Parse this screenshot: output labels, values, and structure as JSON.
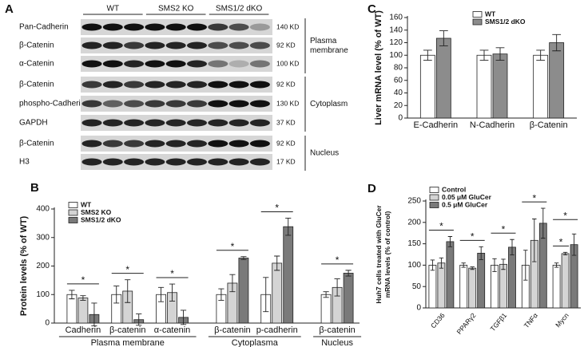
{
  "blot": {
    "panel_label": "A",
    "lane_groups": [
      "WT",
      "SMS2 KO",
      "SMS1/2 dKO"
    ],
    "rows": [
      {
        "label": "Pan-Cadherin",
        "size": "140 KD"
      },
      {
        "label": "β-Catenin",
        "size": "92 KD"
      },
      {
        "label": "α-Catenin",
        "size": "100 KD"
      },
      {
        "label": "β-Catenin",
        "size": "92 KD"
      },
      {
        "label": "phospho-Cadherin",
        "size": "130 KD"
      },
      {
        "label": "GAPDH",
        "size": "37 KD"
      },
      {
        "label": "β-Catenin",
        "size": "92 KD"
      },
      {
        "label": "H3",
        "size": "17 KD"
      }
    ],
    "sections": [
      {
        "label": [
          "Plasma",
          "membrane"
        ]
      },
      {
        "label": [
          "Cytoplasm"
        ]
      },
      {
        "label": [
          "Nucleus"
        ]
      }
    ]
  },
  "chart_data": [
    {
      "type": "bar",
      "panel_label": "B",
      "ylabel": [
        "Protein levels (% of WT)"
      ],
      "groups": [
        {
          "label": "Plasma membrane",
          "categories": [
            "Cadherin",
            "β-catenin",
            "α-catenin"
          ]
        },
        {
          "label": "Cytoplasma",
          "categories": [
            "β-catenin",
            "p-cadherin"
          ]
        },
        {
          "label": "Nucleus",
          "categories": [
            "β-catenin"
          ]
        }
      ],
      "series": [
        {
          "name": "WT",
          "color": "#ffffff",
          "values": [
            100,
            100,
            100,
            100,
            100,
            100
          ],
          "errors": [
            15,
            30,
            25,
            20,
            60,
            10
          ]
        },
        {
          "name": "SMS2 KO",
          "color": "#d4d4d4",
          "values": [
            88,
            112,
            107,
            140,
            210,
            125
          ],
          "errors": [
            8,
            40,
            30,
            30,
            25,
            30
          ]
        },
        {
          "name": "SMS1/2 dKO",
          "color": "#7a7a7a",
          "values": [
            30,
            12,
            20,
            228,
            338,
            175
          ],
          "errors": [
            40,
            20,
            25,
            5,
            30,
            10
          ]
        }
      ],
      "significance": [
        [
          "*"
        ],
        [
          "*"
        ],
        [
          "*"
        ],
        [
          "*"
        ],
        [
          "*"
        ],
        [
          "*"
        ]
      ],
      "ylim": [
        0,
        400
      ],
      "yticks": [
        0,
        100,
        200,
        300,
        400
      ],
      "legend": "upper left"
    },
    {
      "type": "bar",
      "panel_label": "C",
      "ylabel": [
        "Liver mRNA level (% of WT)"
      ],
      "categories": [
        "E-Cadherin",
        "N-Cadherin",
        "β-Catenin"
      ],
      "series": [
        {
          "name": "WT",
          "color": "#ffffff",
          "values": [
            100,
            100,
            100
          ],
          "errors": [
            8,
            8,
            8
          ]
        },
        {
          "name": "SMS1/2 dKO",
          "color": "#8c8c8c",
          "values": [
            127,
            102,
            120
          ],
          "errors": [
            12,
            10,
            13
          ]
        }
      ],
      "ylim": [
        0,
        160
      ],
      "yticks": [
        0,
        20,
        40,
        60,
        80,
        100,
        120,
        140,
        160
      ],
      "legend": "upper left"
    },
    {
      "type": "bar",
      "panel_label": "D",
      "ylabel": [
        "Huh7 cells treated with GluCer",
        "mRNA levels (% of control)"
      ],
      "categories": [
        "CD36",
        "PPARγ2",
        "TGFβ1",
        "TNFα",
        "Mycn"
      ],
      "series": [
        {
          "name": "Control",
          "color": "#ffffff",
          "values": [
            100,
            100,
            100,
            100,
            100
          ],
          "errors": [
            12,
            5,
            15,
            35,
            5
          ]
        },
        {
          "name": "0.05 μM GluCer",
          "color": "#d4d4d4",
          "values": [
            105,
            93,
            102,
            158,
            127
          ],
          "errors": [
            12,
            3,
            12,
            50,
            3
          ]
        },
        {
          "name": "0.5 μM GluCer",
          "color": "#7a7a7a",
          "values": [
            155,
            128,
            142,
            198,
            148
          ],
          "errors": [
            12,
            15,
            18,
            35,
            25
          ]
        }
      ],
      "significance": [
        [
          "*"
        ],
        [
          "*"
        ],
        [
          "*"
        ],
        [
          "*"
        ],
        [
          "*",
          "*"
        ]
      ],
      "ylim": [
        0,
        250
      ],
      "yticks": [
        0,
        50,
        100,
        150,
        200,
        250
      ],
      "legend": "upper left"
    }
  ]
}
